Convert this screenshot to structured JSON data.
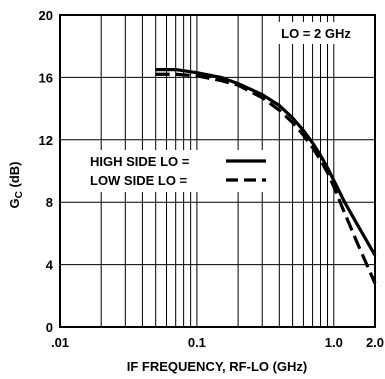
{
  "chart_data": {
    "type": "line",
    "title": "",
    "xlabel": "IF FREQUENCY, RF-LO (GHz)",
    "ylabel_main": "G",
    "ylabel_sub": "C",
    "ylabel_unit": " (dB)",
    "x_scale": "log",
    "xlim": [
      0.01,
      2.0
    ],
    "ylim": [
      0,
      20
    ],
    "grid": true,
    "x_ticks": [
      {
        "value": 0.01,
        "label": ".01"
      },
      {
        "value": 0.1,
        "label": "0.1"
      },
      {
        "value": 1.0,
        "label": "1.0"
      },
      {
        "value": 2.0,
        "label": "2.0"
      }
    ],
    "y_ticks": [
      {
        "value": 0,
        "label": "0"
      },
      {
        "value": 4,
        "label": "4"
      },
      {
        "value": 8,
        "label": "8"
      },
      {
        "value": 12,
        "label": "12"
      },
      {
        "value": 16,
        "label": "16"
      },
      {
        "value": 20,
        "label": "20"
      }
    ],
    "annotation": "LO = 2 GHz",
    "legend_position": "center-left",
    "series": [
      {
        "name": "HIGH SIDE LO =",
        "style": "solid",
        "x": [
          0.05,
          0.07,
          0.1,
          0.15,
          0.2,
          0.3,
          0.4,
          0.5,
          0.6,
          0.7,
          0.8,
          0.9,
          1.0,
          1.2,
          1.5,
          2.0
        ],
        "y": [
          16.5,
          16.5,
          16.3,
          16.0,
          15.6,
          14.9,
          14.2,
          13.4,
          12.6,
          11.8,
          11.0,
          10.2,
          9.4,
          8.0,
          6.5,
          4.6
        ]
      },
      {
        "name": "LOW SIDE LO =",
        "style": "dashed",
        "x": [
          0.05,
          0.07,
          0.1,
          0.15,
          0.2,
          0.3,
          0.4,
          0.5,
          0.6,
          0.7,
          0.8,
          0.9,
          1.0,
          1.2,
          1.5,
          2.0
        ],
        "y": [
          16.2,
          16.2,
          16.1,
          15.8,
          15.5,
          14.7,
          13.9,
          13.1,
          12.3,
          11.5,
          10.7,
          9.9,
          9.0,
          7.3,
          5.3,
          2.8
        ]
      }
    ]
  }
}
